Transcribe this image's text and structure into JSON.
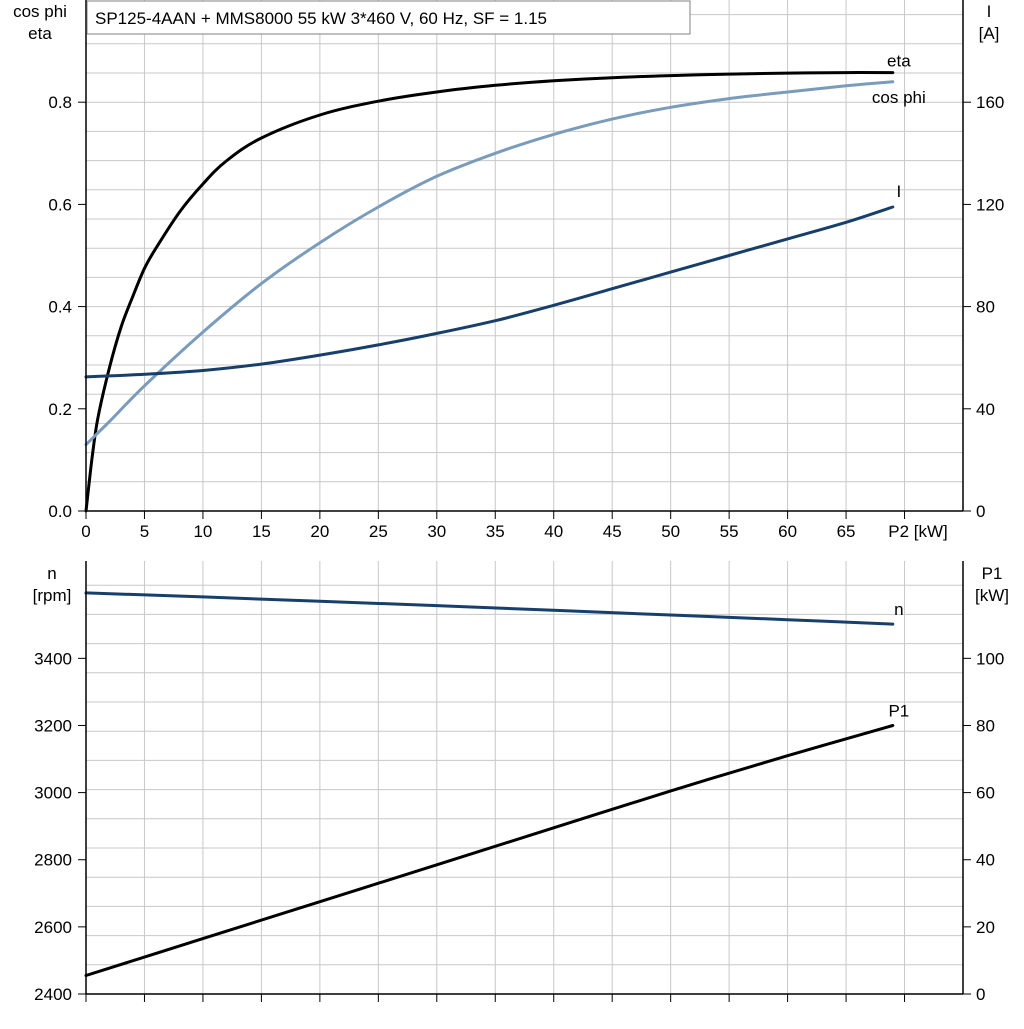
{
  "title": "SP125-4AAN + MMS8000   55 kW   3*460 V, 60 Hz, SF = 1.15",
  "chart_data": [
    {
      "type": "line",
      "x_axis": {
        "label": "P2 [kW]",
        "range": [
          0,
          75
        ],
        "ticks": [
          0,
          5,
          10,
          15,
          20,
          25,
          30,
          35,
          40,
          45,
          50,
          55,
          60,
          65
        ]
      },
      "y_left": {
        "label_lines": [
          "cos phi",
          "eta"
        ],
        "range": [
          0,
          1.0
        ],
        "ticks": [
          0.0,
          0.2,
          0.4,
          0.6,
          0.8
        ],
        "tick_labels": [
          "0.0",
          "0.2",
          "0.4",
          "0.6",
          "0.8"
        ]
      },
      "y_right": {
        "label_lines": [
          "I",
          "[A]"
        ],
        "range": [
          0,
          200
        ],
        "ticks": [
          0,
          40,
          80,
          120,
          160
        ],
        "tick_labels": [
          "0",
          "40",
          "80",
          "120",
          "160"
        ]
      },
      "grid": true,
      "series": [
        {
          "name": "eta",
          "axis": "left",
          "color": "#000000",
          "x": [
            0,
            0.5,
            1,
            2,
            3,
            4,
            5,
            6,
            8,
            10,
            12,
            15,
            20,
            25,
            30,
            35,
            40,
            45,
            50,
            55,
            60,
            65,
            69
          ],
          "y": [
            0,
            0.1,
            0.18,
            0.28,
            0.36,
            0.42,
            0.475,
            0.515,
            0.585,
            0.64,
            0.685,
            0.73,
            0.775,
            0.802,
            0.82,
            0.833,
            0.842,
            0.848,
            0.852,
            0.855,
            0.857,
            0.858,
            0.858
          ]
        },
        {
          "name": "cos phi",
          "axis": "left",
          "color": "#7a9cbc",
          "x": [
            0,
            2,
            5,
            10,
            15,
            20,
            25,
            30,
            35,
            40,
            45,
            50,
            55,
            60,
            65,
            69
          ],
          "y": [
            0.13,
            0.175,
            0.245,
            0.35,
            0.445,
            0.525,
            0.595,
            0.655,
            0.7,
            0.737,
            0.767,
            0.79,
            0.807,
            0.82,
            0.832,
            0.84
          ]
        },
        {
          "name": "I",
          "axis": "right",
          "color": "#173f6b",
          "x": [
            0,
            5,
            10,
            15,
            20,
            25,
            30,
            35,
            40,
            45,
            50,
            55,
            60,
            65,
            69
          ],
          "y": [
            52.5,
            53.5,
            55,
            57.5,
            61,
            65,
            69.5,
            74.5,
            80.5,
            87,
            93.5,
            100,
            106.5,
            113,
            119
          ]
        }
      ]
    },
    {
      "type": "line",
      "x_axis": {
        "range": [
          0,
          75
        ]
      },
      "y_left": {
        "label_lines": [
          "n",
          "[rpm]"
        ],
        "range": [
          2400,
          3690
        ],
        "ticks": [
          2400,
          2600,
          2800,
          3000,
          3200,
          3400
        ],
        "tick_labels": [
          "2400",
          "2600",
          "2800",
          "3000",
          "3200",
          "3400"
        ]
      },
      "y_right": {
        "label_lines": [
          "P1",
          "[kW]"
        ],
        "range": [
          0,
          129
        ],
        "ticks": [
          0,
          20,
          40,
          60,
          80,
          100
        ],
        "tick_labels": [
          "0",
          "20",
          "40",
          "60",
          "80",
          "100"
        ]
      },
      "grid": true,
      "series": [
        {
          "name": "n",
          "axis": "left",
          "color": "#173f6b",
          "x": [
            0,
            10,
            20,
            30,
            40,
            50,
            60,
            69
          ],
          "y": [
            3595,
            3583,
            3570,
            3557,
            3543,
            3529,
            3515,
            3502
          ]
        },
        {
          "name": "P1",
          "axis": "right",
          "color": "#000000",
          "x": [
            0,
            10,
            20,
            30,
            40,
            50,
            60,
            69
          ],
          "y": [
            5.5,
            16.5,
            27.5,
            38.5,
            49.5,
            60.5,
            71,
            80
          ]
        }
      ]
    }
  ]
}
